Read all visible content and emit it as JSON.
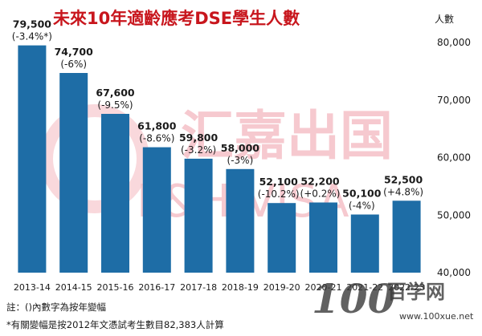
{
  "chart_data": {
    "type": "bar",
    "title": "未來10年適齡應考DSE學生人數",
    "ylabel": "人數",
    "ylim": [
      40000,
      80000
    ],
    "yticks": [
      "40,000",
      "50,000",
      "60,000",
      "70,000",
      "80,000"
    ],
    "ytick_values": [
      40000,
      50000,
      60000,
      70000,
      80000
    ],
    "categories": [
      "2013-14",
      "2014-15",
      "2015-16",
      "2016-17",
      "2017-18",
      "2018-19",
      "2019-20",
      "2020-21",
      "2021-22",
      "2022-23"
    ],
    "values": [
      79500,
      74700,
      67600,
      61800,
      59800,
      58000,
      52100,
      52200,
      50100,
      52500
    ],
    "value_labels": [
      "79,500",
      "74,700",
      "67,600",
      "61,800",
      "59,800",
      "58,000",
      "52,100",
      "52,200",
      "50,100",
      "52,500"
    ],
    "change_labels": [
      "(-3.4%*)",
      "(-6%)",
      "(-9.5%)",
      "(-8.6%)",
      "(-3.2%)",
      "(-3%)",
      "(-10.2%)",
      "(+0.2%)",
      "(-4%)",
      "(+4.8%)"
    ],
    "bar_color": "#1e6da6",
    "grid": false,
    "notes": [
      "註：()內數字為按年變幅",
      "*有關變幅是按2012年文憑試考生數目82,383人計算"
    ]
  },
  "watermark": {
    "chinese": "汇嘉出国",
    "english": "L&H VISA"
  },
  "brand": {
    "logo_number": "100",
    "logo_text": "百学网",
    "url": "www.100xue.net"
  },
  "colors": {
    "title": "#c8161d",
    "watermark": "#f4b8c0"
  }
}
